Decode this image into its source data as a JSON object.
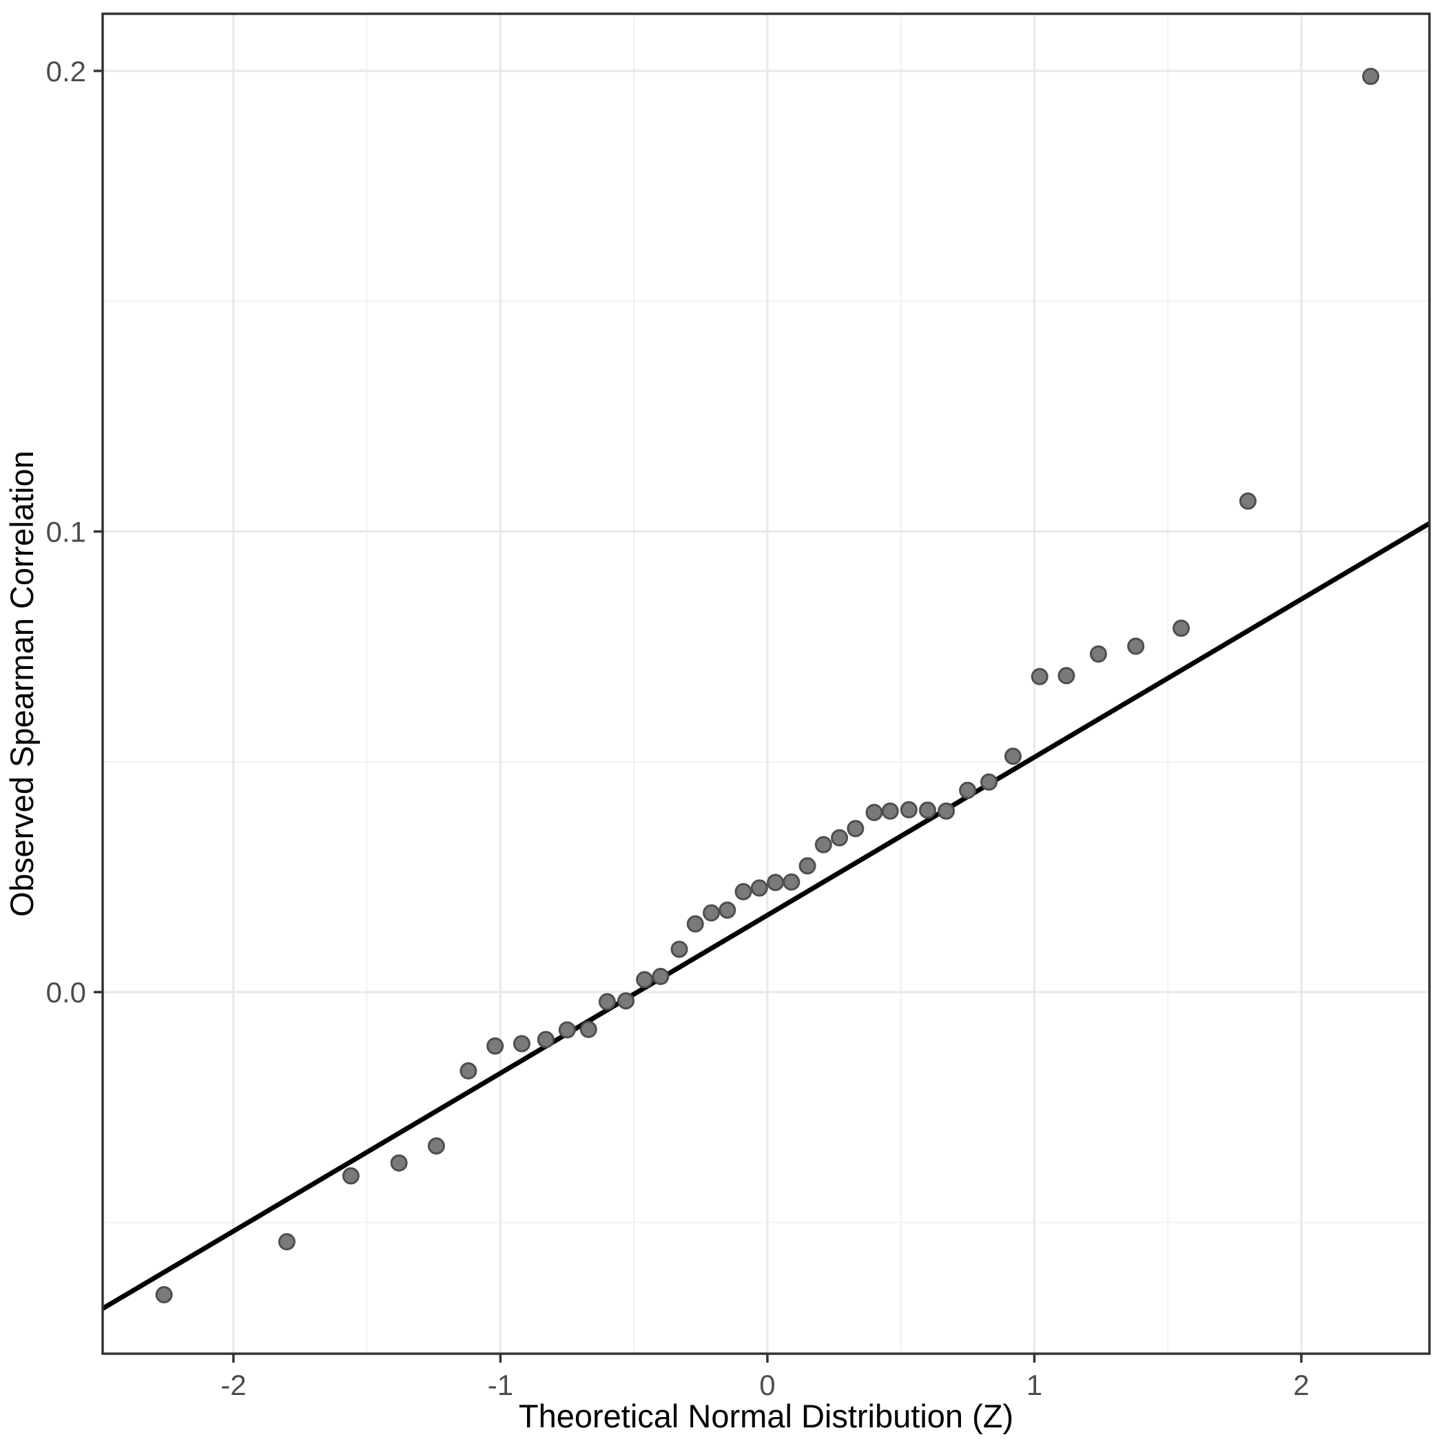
{
  "figure": {
    "background": "#ffffff"
  },
  "chart_data": {
    "type": "scatter",
    "title": "",
    "xlabel": "Theoretical Normal Distribution (Z)",
    "ylabel": "Observed Spearman Correlation",
    "xlim": [
      -2.49,
      2.48
    ],
    "ylim": [
      -0.0785,
      0.2124
    ],
    "grid": "on",
    "legend": "none",
    "x_tick_values": [
      -2,
      -1,
      0,
      1,
      2
    ],
    "x_tick_labels": [
      "-2",
      "-1",
      "0",
      "1",
      "2"
    ],
    "x_minor_gridlines": [
      -1.5,
      -0.5,
      0.5,
      1.5
    ],
    "y_tick_values": [
      0.0,
      0.1,
      0.2
    ],
    "y_tick_labels": [
      "0.0",
      "0.1",
      "0.2"
    ],
    "y_minor_gridlines": [
      -0.05,
      0.05,
      0.15
    ],
    "reference_line": {
      "intercept": 0.0167,
      "slope": 0.0343
    },
    "points": [
      [
        -2.26,
        -0.0657
      ],
      [
        -1.8,
        -0.0542
      ],
      [
        -1.56,
        -0.0399
      ],
      [
        -1.38,
        -0.0371
      ],
      [
        -1.24,
        -0.0334
      ],
      [
        -1.12,
        -0.0171
      ],
      [
        -1.02,
        -0.0117
      ],
      [
        -0.92,
        -0.0112
      ],
      [
        -0.83,
        -0.0103
      ],
      [
        -0.75,
        -0.0082
      ],
      [
        -0.67,
        -0.0081
      ],
      [
        -0.6,
        -0.0021
      ],
      [
        -0.53,
        -0.0019
      ],
      [
        -0.46,
        0.0027
      ],
      [
        -0.4,
        0.0034
      ],
      [
        -0.33,
        0.0093
      ],
      [
        -0.27,
        0.0148
      ],
      [
        -0.21,
        0.0172
      ],
      [
        -0.15,
        0.0178
      ],
      [
        -0.09,
        0.0218
      ],
      [
        -0.03,
        0.0226
      ],
      [
        0.03,
        0.0238
      ],
      [
        0.09,
        0.0239
      ],
      [
        0.15,
        0.0274
      ],
      [
        0.21,
        0.032
      ],
      [
        0.27,
        0.0335
      ],
      [
        0.33,
        0.0355
      ],
      [
        0.4,
        0.039
      ],
      [
        0.46,
        0.0393
      ],
      [
        0.53,
        0.0396
      ],
      [
        0.6,
        0.0395
      ],
      [
        0.67,
        0.0393
      ],
      [
        0.75,
        0.0438
      ],
      [
        0.83,
        0.0456
      ],
      [
        0.92,
        0.0512
      ],
      [
        1.02,
        0.0685
      ],
      [
        1.12,
        0.0687
      ],
      [
        1.24,
        0.0734
      ],
      [
        1.38,
        0.0751
      ],
      [
        1.55,
        0.079
      ],
      [
        1.8,
        0.1066
      ],
      [
        2.26,
        0.1988
      ]
    ],
    "style": {
      "point_fill": "#7a7a7a",
      "point_stroke": "#4e4e4e",
      "line_color": "#000000",
      "grid_major_color": "#e8e8e8",
      "grid_minor_color": "#f1f1f1",
      "panel_border_color": "#333333",
      "tick_color": "#333333",
      "tick_text_color": "#4d4d4d",
      "title_text_color": "#000000"
    }
  }
}
